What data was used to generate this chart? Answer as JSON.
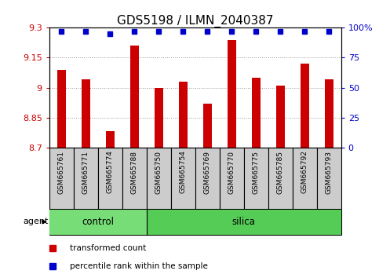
{
  "title": "GDS5198 / ILMN_2040387",
  "samples": [
    "GSM665761",
    "GSM665771",
    "GSM665774",
    "GSM665788",
    "GSM665750",
    "GSM665754",
    "GSM665769",
    "GSM665770",
    "GSM665775",
    "GSM665785",
    "GSM665792",
    "GSM665793"
  ],
  "groups": [
    "control",
    "control",
    "control",
    "control",
    "silica",
    "silica",
    "silica",
    "silica",
    "silica",
    "silica",
    "silica",
    "silica"
  ],
  "transformed_count": [
    9.09,
    9.04,
    8.78,
    9.21,
    9.0,
    9.03,
    8.92,
    9.24,
    9.05,
    9.01,
    9.12,
    9.04
  ],
  "percentile_rank": [
    97,
    97,
    95,
    97,
    97,
    97,
    97,
    97,
    97,
    97,
    97,
    97
  ],
  "ylim_left": [
    8.7,
    9.3
  ],
  "ylim_right": [
    0,
    100
  ],
  "yticks_left": [
    8.7,
    8.85,
    9.0,
    9.15,
    9.3
  ],
  "yticks_right": [
    0,
    25,
    50,
    75,
    100
  ],
  "ytick_labels_left": [
    "8.7",
    "8.85",
    "9",
    "9.15",
    "9.3"
  ],
  "ytick_labels_right": [
    "0",
    "25",
    "50",
    "75",
    "100%"
  ],
  "bar_color": "#cc0000",
  "dot_color": "#0000cc",
  "control_color": "#77dd77",
  "silica_color": "#55cc55",
  "xticklabel_bg": "#cccccc",
  "agent_label": "agent",
  "legend_items": [
    "transformed count",
    "percentile rank within the sample"
  ],
  "grid_color": "#999999",
  "title_fontsize": 11,
  "tick_fontsize": 8,
  "bar_width": 0.35,
  "n_control": 4,
  "n_silica": 8
}
